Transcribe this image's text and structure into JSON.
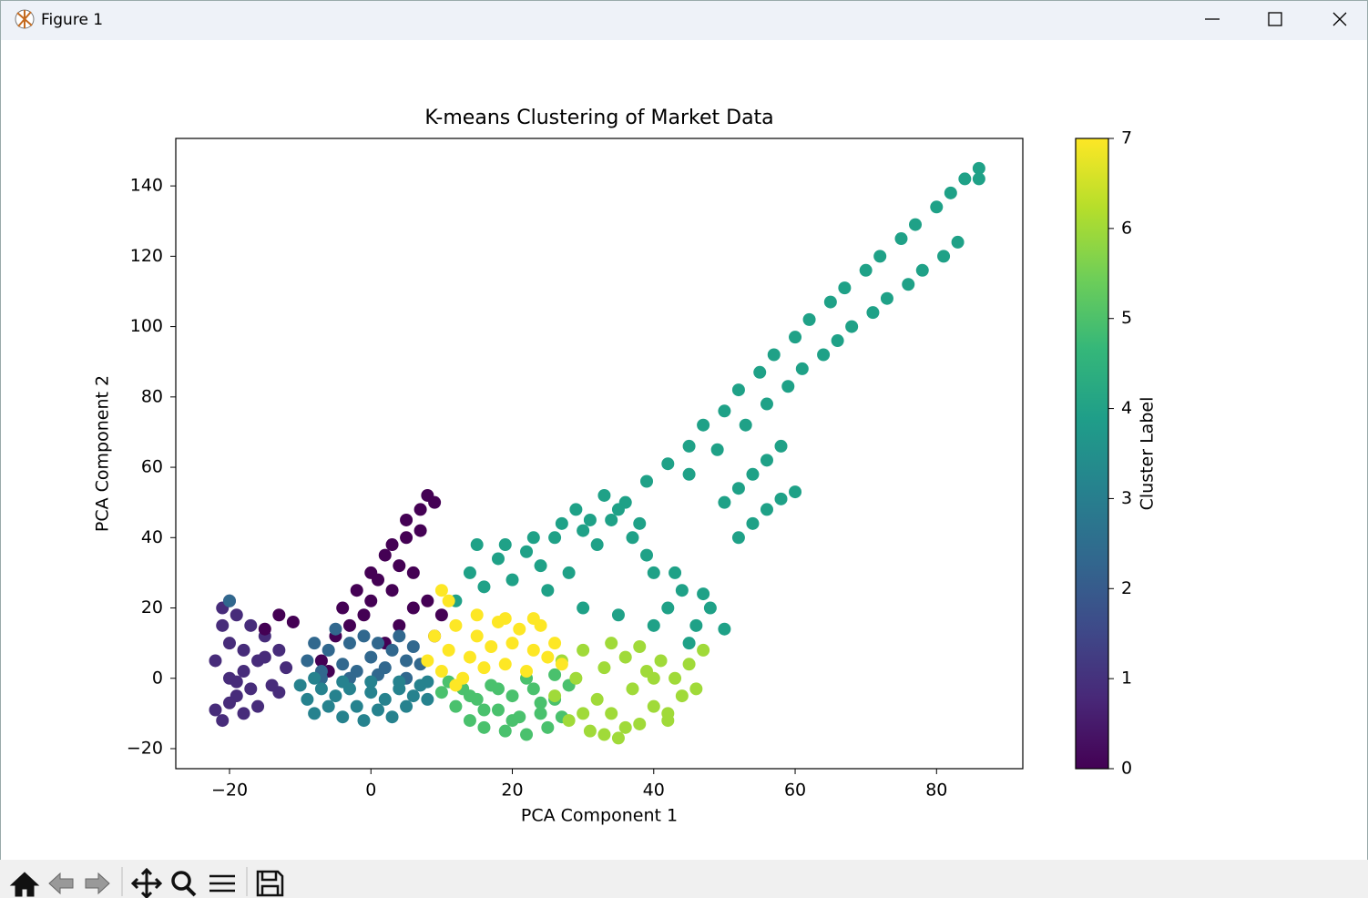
{
  "window": {
    "title": "Figure 1"
  },
  "chart_data": {
    "type": "scatter",
    "title": "K-means Clustering of Market Data",
    "x_label": "PCA Component 1",
    "y_label": "PCA Component 2",
    "xlim": [
      -27.6,
      92.2
    ],
    "ylim": [
      -25.7,
      153.5
    ],
    "xticks": [
      {
        "value": -20,
        "label": "−20"
      },
      0,
      20,
      40,
      60,
      80
    ],
    "yticks": [
      {
        "value": -20,
        "label": "−20"
      },
      0,
      20,
      40,
      60,
      80,
      100,
      120,
      140
    ],
    "series": [
      {
        "color": "#472c7a",
        "x": [
          -22,
          -22,
          -21,
          -21,
          -20,
          -20,
          -20,
          -19,
          -19,
          -18,
          -18,
          -17,
          -16,
          -15,
          -14,
          -13,
          -12,
          -21,
          -19,
          -17,
          -15,
          -13,
          -20,
          -18,
          -16
        ],
        "values": [
          -9,
          5,
          -12,
          15,
          0,
          10,
          22,
          -5,
          18,
          -10,
          8,
          -3,
          5,
          12,
          -2,
          8,
          3,
          20,
          -1,
          15,
          6,
          -4,
          -7,
          2,
          -8
        ]
      },
      {
        "color": "#440154",
        "x": [
          -15,
          -13,
          -11,
          -7,
          -5,
          -4,
          -3,
          -2,
          -1,
          0,
          0,
          1,
          2,
          3,
          3,
          4,
          5,
          5,
          6,
          7,
          7,
          8,
          9,
          8,
          6,
          4,
          2,
          10,
          9,
          -6
        ],
        "values": [
          14,
          18,
          16,
          5,
          12,
          20,
          15,
          25,
          18,
          30,
          22,
          28,
          35,
          25,
          38,
          32,
          40,
          45,
          30,
          48,
          42,
          52,
          50,
          22,
          20,
          15,
          10,
          18,
          12,
          2
        ]
      },
      {
        "color": "#31688e",
        "x": [
          -20,
          -9,
          -8,
          -7,
          -6,
          -5,
          -4,
          -3,
          -2,
          -1,
          0,
          1,
          2,
          3,
          4,
          5,
          6,
          -7,
          -3,
          1,
          5,
          7
        ],
        "values": [
          22,
          5,
          10,
          2,
          8,
          14,
          4,
          10,
          2,
          12,
          6,
          10,
          3,
          8,
          12,
          5,
          9,
          0,
          0,
          1,
          0,
          4
        ]
      },
      {
        "color": "#26828e",
        "x": [
          -10,
          -9,
          -8,
          -7,
          -6,
          -5,
          -4,
          -3,
          -2,
          -1,
          0,
          1,
          2,
          3,
          4,
          5,
          6,
          7,
          8,
          -8,
          -4,
          0,
          4,
          8
        ],
        "values": [
          -2,
          -6,
          -10,
          -3,
          -8,
          -5,
          -11,
          -3,
          -8,
          -12,
          -4,
          -9,
          -6,
          -11,
          -3,
          -8,
          -5,
          -2,
          -6,
          0,
          -1,
          -1,
          -1,
          -1
        ]
      },
      {
        "color": "#1fa187",
        "x": [
          12,
          14,
          16,
          18,
          20,
          22,
          24,
          26,
          28,
          30,
          32,
          34,
          36,
          38,
          40,
          42,
          44,
          46,
          48,
          50,
          15,
          19,
          23,
          27,
          31,
          35,
          39,
          43,
          47,
          25,
          30,
          35,
          40,
          45,
          29,
          33,
          37,
          50,
          52,
          54,
          56,
          58,
          52,
          54,
          56,
          58,
          60,
          39,
          42,
          45,
          47,
          50,
          52,
          55,
          57,
          60,
          62,
          65,
          67,
          70,
          72,
          75,
          77,
          80,
          82,
          84,
          86,
          45,
          49,
          53,
          56,
          59,
          61,
          64,
          66,
          68,
          71,
          73,
          76,
          78,
          81,
          83,
          86
        ],
        "values": [
          22,
          30,
          26,
          34,
          28,
          36,
          32,
          40,
          30,
          42,
          38,
          45,
          50,
          44,
          30,
          20,
          25,
          15,
          20,
          14,
          38,
          38,
          40,
          44,
          45,
          48,
          35,
          30,
          24,
          25,
          20,
          18,
          15,
          10,
          48,
          52,
          40,
          50,
          54,
          58,
          62,
          66,
          40,
          44,
          48,
          51,
          53,
          56,
          61,
          66,
          72,
          76,
          82,
          87,
          92,
          97,
          102,
          107,
          111,
          116,
          120,
          125,
          129,
          134,
          138,
          142,
          145,
          58,
          65,
          72,
          78,
          83,
          88,
          92,
          96,
          100,
          104,
          108,
          112,
          116,
          120,
          124,
          142
        ]
      },
      {
        "color": "#4ac16d",
        "x": [
          10,
          11,
          12,
          13,
          14,
          15,
          16,
          17,
          18,
          19,
          20,
          21,
          22,
          23,
          24,
          25,
          26,
          27,
          28,
          14,
          18,
          22,
          26,
          16,
          20,
          24
        ],
        "values": [
          -4,
          -1,
          -8,
          -3,
          -12,
          -6,
          -14,
          -2,
          -9,
          -15,
          -5,
          -11,
          -16,
          -3,
          -10,
          -14,
          -6,
          -11,
          -2,
          -5,
          -3,
          0,
          1,
          -9,
          -12,
          -7
        ]
      },
      {
        "color": "#a0da39",
        "x": [
          26,
          27,
          28,
          29,
          30,
          31,
          32,
          33,
          34,
          35,
          36,
          37,
          38,
          39,
          40,
          41,
          42,
          43,
          44,
          45,
          46,
          47,
          30,
          34,
          38,
          42,
          36,
          40,
          33
        ],
        "values": [
          -5,
          5,
          -12,
          0,
          8,
          -15,
          -6,
          3,
          -10,
          -17,
          6,
          -3,
          -13,
          2,
          -8,
          5,
          -12,
          0,
          -5,
          4,
          -3,
          8,
          -10,
          10,
          9,
          -10,
          -14,
          0,
          -16
        ]
      },
      {
        "color": "#fde725",
        "x": [
          8,
          9,
          10,
          11,
          12,
          13,
          14,
          15,
          16,
          17,
          18,
          19,
          20,
          21,
          22,
          23,
          24,
          25,
          26,
          27,
          11,
          15,
          19,
          23,
          12,
          10
        ],
        "values": [
          5,
          12,
          2,
          8,
          15,
          0,
          6,
          12,
          3,
          9,
          16,
          4,
          10,
          14,
          2,
          8,
          15,
          6,
          10,
          4,
          22,
          18,
          17,
          17,
          -2,
          25
        ]
      }
    ],
    "colorbar": {
      "label": "Cluster Label",
      "lim": [
        0,
        7
      ],
      "ticks": [
        0,
        1,
        2,
        3,
        4,
        5,
        6,
        7
      ],
      "colors": [
        "#440154",
        "#482878",
        "#3e4a89",
        "#31688e",
        "#26828e",
        "#1f9e89",
        "#35b779",
        "#6ece58",
        "#b5de2b",
        "#fde725"
      ]
    }
  }
}
